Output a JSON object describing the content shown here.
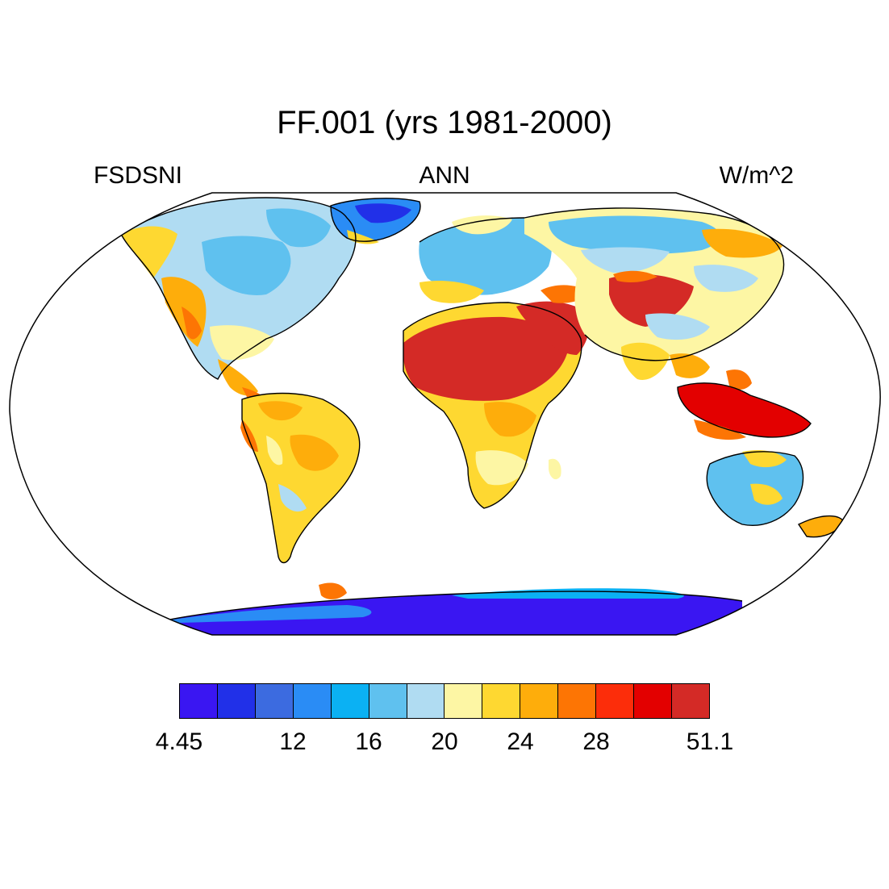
{
  "title": "FF.001 (yrs 1981-2000)",
  "variable": "FSDSNI",
  "season": "ANN",
  "units": "W/m^2",
  "projection": "Robinson",
  "colorbar": {
    "colors": [
      "#3a16f2",
      "#2130e8",
      "#3c6be0",
      "#2a8cf5",
      "#0bb1f3",
      "#5fc1ef",
      "#b0dcf2",
      "#fdf6a4",
      "#fed831",
      "#fead0b",
      "#fd7504",
      "#fc2d0a",
      "#e30000",
      "#d42a26"
    ],
    "labels": [
      "4.45",
      "12",
      "16",
      "20",
      "24",
      "28",
      "51.1"
    ],
    "label_boundary_index": [
      0,
      3,
      5,
      7,
      9,
      11,
      14
    ]
  },
  "regions": [
    {
      "name": "Sahara and Arabia",
      "level_color": "#d42a26"
    },
    {
      "name": "Central Asia",
      "level_color": "#d42a26"
    },
    {
      "name": "Maritime Continent",
      "level_color": "#e30000"
    },
    {
      "name": "Antarctica",
      "level_color": "#3a16f2"
    },
    {
      "name": "Greenland",
      "level_color": "#2130e8"
    },
    {
      "name": "Amazon",
      "level_color": "#fed831"
    },
    {
      "name": "Southern Africa",
      "level_color": "#fdf6a4"
    },
    {
      "name": "Australia",
      "level_color": "#5fc1ef"
    },
    {
      "name": "Northern Eurasia",
      "level_color": "#5fc1ef"
    },
    {
      "name": "North America",
      "level_color": "#b0dcf2"
    }
  ]
}
